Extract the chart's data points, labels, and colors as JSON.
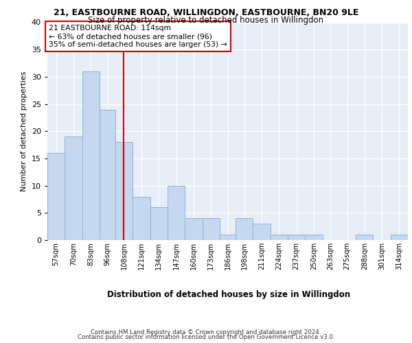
{
  "title_line1": "21, EASTBOURNE ROAD, WILLINGDON, EASTBOURNE, BN20 9LE",
  "title_line2": "Size of property relative to detached houses in Willingdon",
  "xlabel": "Distribution of detached houses by size in Willingdon",
  "ylabel": "Number of detached properties",
  "bin_labels": [
    "57sqm",
    "70sqm",
    "83sqm",
    "96sqm",
    "108sqm",
    "121sqm",
    "134sqm",
    "147sqm",
    "160sqm",
    "173sqm",
    "186sqm",
    "198sqm",
    "211sqm",
    "224sqm",
    "237sqm",
    "250sqm",
    "263sqm",
    "275sqm",
    "288sqm",
    "301sqm",
    "314sqm"
  ],
  "bin_edges": [
    57,
    70,
    83,
    96,
    108,
    121,
    134,
    147,
    160,
    173,
    186,
    198,
    211,
    224,
    237,
    250,
    263,
    275,
    288,
    301,
    314,
    327
  ],
  "values": [
    16,
    19,
    31,
    24,
    18,
    8,
    6,
    10,
    4,
    4,
    1,
    4,
    3,
    1,
    1,
    1,
    0,
    0,
    1,
    0,
    1
  ],
  "bar_color": "#c5d8ef",
  "bar_edge_color": "#8ab4d4",
  "property_size": 114,
  "annotation_line1": "21 EASTBOURNE ROAD: 114sqm",
  "annotation_line2": "← 63% of detached houses are smaller (96)",
  "annotation_line3": "35% of semi-detached houses are larger (53) →",
  "vline_color": "#cc0000",
  "annotation_box_color": "#ffffff",
  "annotation_box_edge": "#cc0000",
  "background_color": "#e8eef8",
  "ylim": [
    0,
    40
  ],
  "yticks": [
    0,
    5,
    10,
    15,
    20,
    25,
    30,
    35,
    40
  ],
  "footer_line1": "Contains HM Land Registry data © Crown copyright and database right 2024.",
  "footer_line2": "Contains public sector information licensed under the Open Government Licence v3.0."
}
